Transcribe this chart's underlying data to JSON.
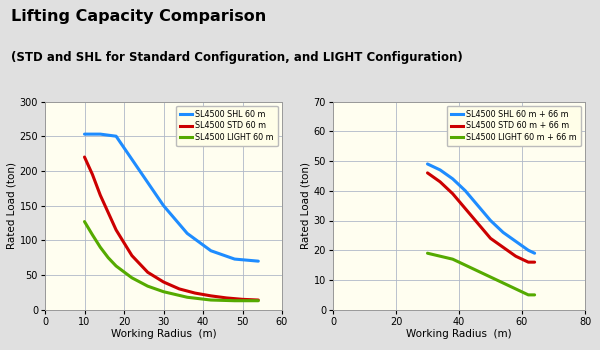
{
  "title_line1": "Lifting Capacity Comparison",
  "title_line2": "(STD and SHL for Standard Configuration, and LIGHT Configuration)",
  "bg_color": "#e0e0e0",
  "plot_bg_color": "#fffef0",
  "left_chart": {
    "xlabel": "Working Radius  (m)",
    "ylabel": "Rated Load (ton)",
    "xlim": [
      0,
      60
    ],
    "ylim": [
      0,
      300
    ],
    "xticks": [
      0,
      10,
      20,
      30,
      40,
      50,
      60
    ],
    "yticks": [
      0,
      50,
      100,
      150,
      200,
      250,
      300
    ],
    "series": [
      {
        "label": "SL4500 SHL 60 m",
        "color": "#1e8cff",
        "x": [
          10,
          14,
          18,
          24,
          30,
          36,
          42,
          48,
          54
        ],
        "y": [
          253,
          253,
          250,
          200,
          150,
          110,
          85,
          73,
          70
        ]
      },
      {
        "label": "SL4500 STD 60 m",
        "color": "#cc0000",
        "x": [
          10,
          12,
          14,
          16,
          18,
          22,
          26,
          30,
          34,
          38,
          42,
          46,
          50,
          54
        ],
        "y": [
          220,
          195,
          165,
          140,
          115,
          78,
          54,
          40,
          30,
          24,
          20,
          17,
          15,
          14
        ]
      },
      {
        "label": "SL4500 LIGHT 60 m",
        "color": "#55aa00",
        "x": [
          10,
          12,
          14,
          16,
          18,
          22,
          26,
          30,
          36,
          42,
          48,
          54
        ],
        "y": [
          127,
          108,
          90,
          75,
          63,
          46,
          34,
          26,
          18,
          14,
          13,
          13
        ]
      }
    ]
  },
  "right_chart": {
    "xlabel": "Working Radius  (m)",
    "ylabel": "Rated Load (ton)",
    "xlim": [
      0,
      80
    ],
    "ylim": [
      0,
      70
    ],
    "xticks": [
      0,
      20,
      40,
      60,
      80
    ],
    "yticks": [
      0,
      10,
      20,
      30,
      40,
      50,
      60,
      70
    ],
    "series": [
      {
        "label": "SL4500 SHL 60 m + 66 m",
        "color": "#1e8cff",
        "x": [
          30,
          34,
          38,
          42,
          46,
          50,
          54,
          58,
          62,
          64
        ],
        "y": [
          49,
          47,
          44,
          40,
          35,
          30,
          26,
          23,
          20,
          19
        ]
      },
      {
        "label": "SL4500 STD 60 m + 66 m",
        "color": "#cc0000",
        "x": [
          30,
          34,
          38,
          42,
          46,
          50,
          54,
          58,
          62,
          64
        ],
        "y": [
          46,
          43,
          39,
          34,
          29,
          24,
          21,
          18,
          16,
          16
        ]
      },
      {
        "label": "SL4500 LIGHT 60 m + 66 m",
        "color": "#55aa00",
        "x": [
          30,
          34,
          38,
          42,
          46,
          50,
          54,
          58,
          62,
          64
        ],
        "y": [
          19,
          18,
          17,
          15,
          13,
          11,
          9,
          7,
          5,
          5
        ]
      }
    ]
  }
}
